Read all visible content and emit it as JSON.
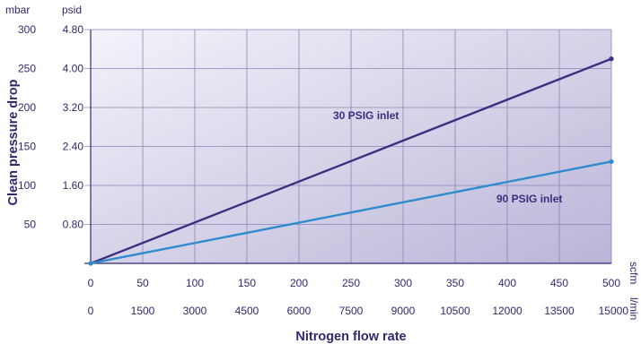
{
  "chart_data": {
    "type": "line",
    "title": "",
    "colors": {
      "plot_bg_light": "#f4f2fa",
      "plot_bg_dark": "#b9b5d8",
      "grid": "#8a86b8",
      "axis": "#2e2a6e",
      "text": "#2e2a6e",
      "series_30": "#3b2f7e",
      "series_90": "#2f8ccc"
    },
    "grid": true,
    "xlabel": "Nitrogen flow rate",
    "ylabel": "Clean pressure drop",
    "x_primary": {
      "unit": "scfm",
      "range": [
        0,
        500
      ],
      "ticks": [
        "0",
        "50",
        "100",
        "150",
        "200",
        "250",
        "300",
        "350",
        "400",
        "450",
        "500"
      ]
    },
    "x_secondary": {
      "unit": "l/min",
      "ticks": [
        "0",
        "1500",
        "3000",
        "4500",
        "6000",
        "7500",
        "9000",
        "10500",
        "12000",
        "13500",
        "15000"
      ]
    },
    "y_primary": {
      "unit": "psid",
      "range": [
        0,
        4.8
      ],
      "tick_values": [
        0.8,
        1.6,
        2.4,
        3.2,
        4.0,
        4.8
      ],
      "ticks": [
        "0.80",
        "1.60",
        "2.40",
        "3.20",
        "4.00",
        "4.80"
      ]
    },
    "y_secondary": {
      "unit": "mbar",
      "ticks": [
        "50",
        "100",
        "150",
        "200",
        "250",
        "300"
      ]
    },
    "series": [
      {
        "name": "30 PSIG inlet",
        "color": "#3b2f7e",
        "x": [
          0,
          500
        ],
        "y": [
          0,
          4.2
        ]
      },
      {
        "name": "90 PSIG inlet",
        "color": "#2f8ccc",
        "x": [
          0,
          500
        ],
        "y": [
          0,
          2.09
        ]
      }
    ]
  }
}
